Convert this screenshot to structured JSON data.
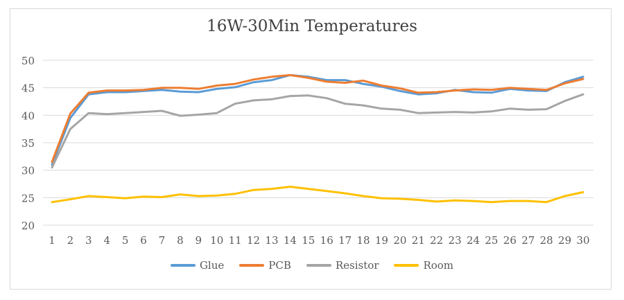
{
  "chart_data": {
    "type": "line",
    "title": "16W-30Min Temperatures",
    "x": [
      1,
      2,
      3,
      4,
      5,
      6,
      7,
      8,
      9,
      10,
      11,
      12,
      13,
      14,
      15,
      16,
      17,
      18,
      19,
      20,
      21,
      22,
      23,
      24,
      25,
      26,
      27,
      28,
      29,
      30
    ],
    "ylim": [
      20,
      50
    ],
    "yticks": [
      20,
      25,
      30,
      35,
      40,
      45,
      50
    ],
    "grid": true,
    "legend": "bottom",
    "series": [
      {
        "name": "Glue",
        "color": "#5b9bd5",
        "values": [
          31.0,
          39.5,
          43.8,
          44.2,
          44.2,
          44.4,
          44.6,
          44.3,
          44.2,
          44.8,
          45.1,
          46.0,
          46.4,
          47.3,
          47.0,
          46.4,
          46.4,
          45.7,
          45.2,
          44.4,
          43.8,
          44.0,
          44.6,
          44.2,
          44.1,
          44.8,
          44.5,
          44.4,
          46.0,
          47.0
        ]
      },
      {
        "name": "PCB",
        "color": "#ed7d31",
        "values": [
          31.5,
          40.3,
          44.1,
          44.5,
          44.5,
          44.6,
          45.0,
          45.0,
          44.8,
          45.4,
          45.7,
          46.5,
          47.0,
          47.3,
          46.8,
          46.1,
          45.9,
          46.3,
          45.4,
          44.9,
          44.1,
          44.2,
          44.5,
          44.7,
          44.6,
          45.0,
          44.8,
          44.6,
          45.8,
          46.6
        ]
      },
      {
        "name": "Resistor",
        "color": "#a5a5a5",
        "values": [
          30.5,
          37.5,
          40.4,
          40.2,
          40.4,
          40.6,
          40.8,
          39.9,
          40.1,
          40.4,
          42.1,
          42.7,
          42.9,
          43.5,
          43.6,
          43.1,
          42.1,
          41.8,
          41.2,
          41.0,
          40.4,
          40.5,
          40.6,
          40.5,
          40.7,
          41.2,
          41.0,
          41.1,
          42.6,
          43.8
        ]
      },
      {
        "name": "Room",
        "color": "#ffc000",
        "values": [
          24.2,
          24.7,
          25.3,
          25.1,
          24.9,
          25.2,
          25.1,
          25.6,
          25.3,
          25.4,
          25.7,
          26.4,
          26.6,
          27.0,
          26.6,
          26.2,
          25.8,
          25.3,
          24.9,
          24.8,
          24.6,
          24.3,
          24.5,
          24.4,
          24.2,
          24.4,
          24.4,
          24.2,
          25.3,
          26.0
        ]
      }
    ]
  }
}
